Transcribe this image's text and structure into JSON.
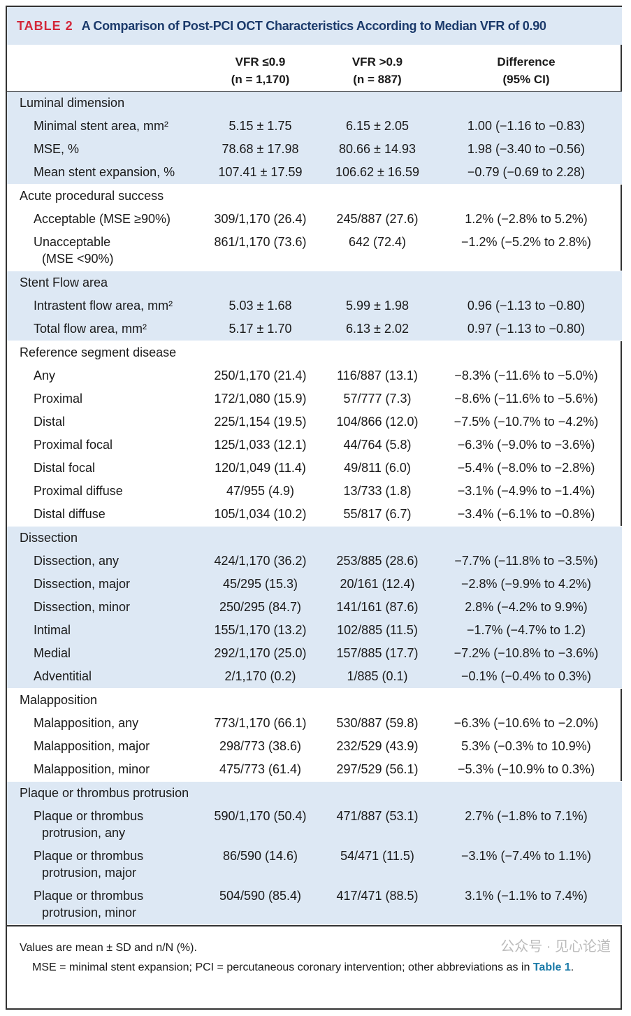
{
  "title": {
    "tag": "TABLE 2",
    "text": "A Comparison of Post-PCI OCT Characteristics According to Median VFR of 0.90"
  },
  "columns": [
    {
      "l1": "VFR ≤0.9",
      "l2": "(n = 1,170)"
    },
    {
      "l1": "VFR >0.9",
      "l2": "(n = 887)"
    },
    {
      "l1": "Difference",
      "l2": "(95% CI)"
    }
  ],
  "sections": [
    {
      "name": "Luminal dimension",
      "shaded": true,
      "rows": [
        {
          "label": "Minimal stent area, mm²",
          "v": [
            "5.15 ± 1.75",
            "6.15 ± 2.05",
            "1.00 (−1.16 to −0.83)"
          ]
        },
        {
          "label": "MSE, %",
          "v": [
            "78.68 ± 17.98",
            "80.66 ± 14.93",
            "1.98 (−3.40 to −0.56)"
          ]
        },
        {
          "label": "Mean stent expansion, %",
          "v": [
            "107.41 ± 17.59",
            "106.62 ± 16.59",
            "−0.79 (−0.69 to 2.28)"
          ]
        }
      ]
    },
    {
      "name": "Acute procedural success",
      "shaded": false,
      "rows": [
        {
          "label": "Acceptable (MSE ≥90%)",
          "v": [
            "309/1,170 (26.4)",
            "245/887 (27.6)",
            "1.2% (−2.8% to 5.2%)"
          ]
        },
        {
          "label": "Unacceptable",
          "label2": "(MSE <90%)",
          "v": [
            "861/1,170 (73.6)",
            "642 (72.4)",
            "−1.2% (−5.2% to 2.8%)"
          ]
        }
      ]
    },
    {
      "name": "Stent Flow area",
      "shaded": true,
      "rows": [
        {
          "label": "Intrastent flow area, mm²",
          "v": [
            "5.03 ± 1.68",
            "5.99 ± 1.98",
            "0.96 (−1.13 to −0.80)"
          ]
        },
        {
          "label": "Total flow area, mm²",
          "v": [
            "5.17 ± 1.70",
            "6.13 ± 2.02",
            "0.97 (−1.13 to −0.80)"
          ]
        }
      ]
    },
    {
      "name": "Reference segment disease",
      "shaded": false,
      "rows": [
        {
          "label": "Any",
          "v": [
            "250/1,170 (21.4)",
            "116/887 (13.1)",
            "−8.3% (−11.6% to −5.0%)"
          ]
        },
        {
          "label": "Proximal",
          "v": [
            "172/1,080 (15.9)",
            "57/777 (7.3)",
            "−8.6% (−11.6% to −5.6%)"
          ]
        },
        {
          "label": "Distal",
          "v": [
            "225/1,154 (19.5)",
            "104/866 (12.0)",
            "−7.5% (−10.7% to −4.2%)"
          ]
        },
        {
          "label": "Proximal focal",
          "v": [
            "125/1,033 (12.1)",
            "44/764 (5.8)",
            "−6.3% (−9.0% to −3.6%)"
          ]
        },
        {
          "label": "Distal focal",
          "v": [
            "120/1,049 (11.4)",
            "49/811 (6.0)",
            "−5.4% (−8.0% to −2.8%)"
          ]
        },
        {
          "label": "Proximal diffuse",
          "v": [
            "47/955 (4.9)",
            "13/733 (1.8)",
            "−3.1% (−4.9% to −1.4%)"
          ]
        },
        {
          "label": "Distal diffuse",
          "v": [
            "105/1,034 (10.2)",
            "55/817 (6.7)",
            "−3.4% (−6.1% to −0.8%)"
          ]
        }
      ]
    },
    {
      "name": "Dissection",
      "shaded": true,
      "rows": [
        {
          "label": "Dissection, any",
          "v": [
            "424/1,170 (36.2)",
            "253/885 (28.6)",
            "−7.7% (−11.8% to −3.5%)"
          ]
        },
        {
          "label": "Dissection, major",
          "v": [
            "45/295 (15.3)",
            "20/161 (12.4)",
            "−2.8% (−9.9% to 4.2%)"
          ]
        },
        {
          "label": "Dissection, minor",
          "v": [
            "250/295 (84.7)",
            "141/161 (87.6)",
            "2.8% (−4.2% to 9.9%)"
          ]
        },
        {
          "label": "Intimal",
          "v": [
            "155/1,170 (13.2)",
            "102/885 (11.5)",
            "−1.7% (−4.7% to 1.2)"
          ]
        },
        {
          "label": "Medial",
          "v": [
            "292/1,170 (25.0)",
            "157/885 (17.7)",
            "−7.2% (−10.8% to −3.6%)"
          ]
        },
        {
          "label": "Adventitial",
          "v": [
            "2/1,170 (0.2)",
            "1/885 (0.1)",
            "−0.1% (−0.4% to 0.3%)"
          ]
        }
      ]
    },
    {
      "name": "Malapposition",
      "shaded": false,
      "rows": [
        {
          "label": "Malapposition, any",
          "v": [
            "773/1,170 (66.1)",
            "530/887 (59.8)",
            "−6.3% (−10.6% to −2.0%)"
          ]
        },
        {
          "label": "Malapposition, major",
          "v": [
            "298/773 (38.6)",
            "232/529 (43.9)",
            "5.3% (−0.3% to 10.9%)"
          ]
        },
        {
          "label": "Malapposition, minor",
          "v": [
            "475/773 (61.4)",
            "297/529 (56.1)",
            "−5.3% (−10.9% to 0.3%)"
          ]
        }
      ]
    },
    {
      "name": "Plaque or thrombus protrusion",
      "shaded": true,
      "rows": [
        {
          "label": "Plaque or thrombus",
          "label2": "protrusion, any",
          "v": [
            "590/1,170 (50.4)",
            "471/887 (53.1)",
            "2.7% (−1.8% to 7.1%)"
          ]
        },
        {
          "label": "Plaque or thrombus",
          "label2": "protrusion, major",
          "v": [
            "86/590 (14.6)",
            "54/471 (11.5)",
            "−3.1% (−7.4% to 1.1%)"
          ]
        },
        {
          "label": "Plaque or thrombus",
          "label2": "protrusion, minor",
          "v": [
            "504/590 (85.4)",
            "417/471 (88.5)",
            "3.1% (−1.1% to 7.4%)"
          ]
        }
      ]
    }
  ],
  "footnote": {
    "line1": "Values are mean ± SD and n/N (%).",
    "line2": "MSE = minimal stent expansion; PCI = percutaneous coronary intervention; other abbreviations as in ",
    "link": "Table 1",
    "end": "."
  },
  "watermark": "公众号 · 见心论道",
  "colors": {
    "header_bg": "#dde8f4",
    "tag": "#d3283a",
    "title": "#1b3a6b",
    "link": "#1a7aa8"
  }
}
